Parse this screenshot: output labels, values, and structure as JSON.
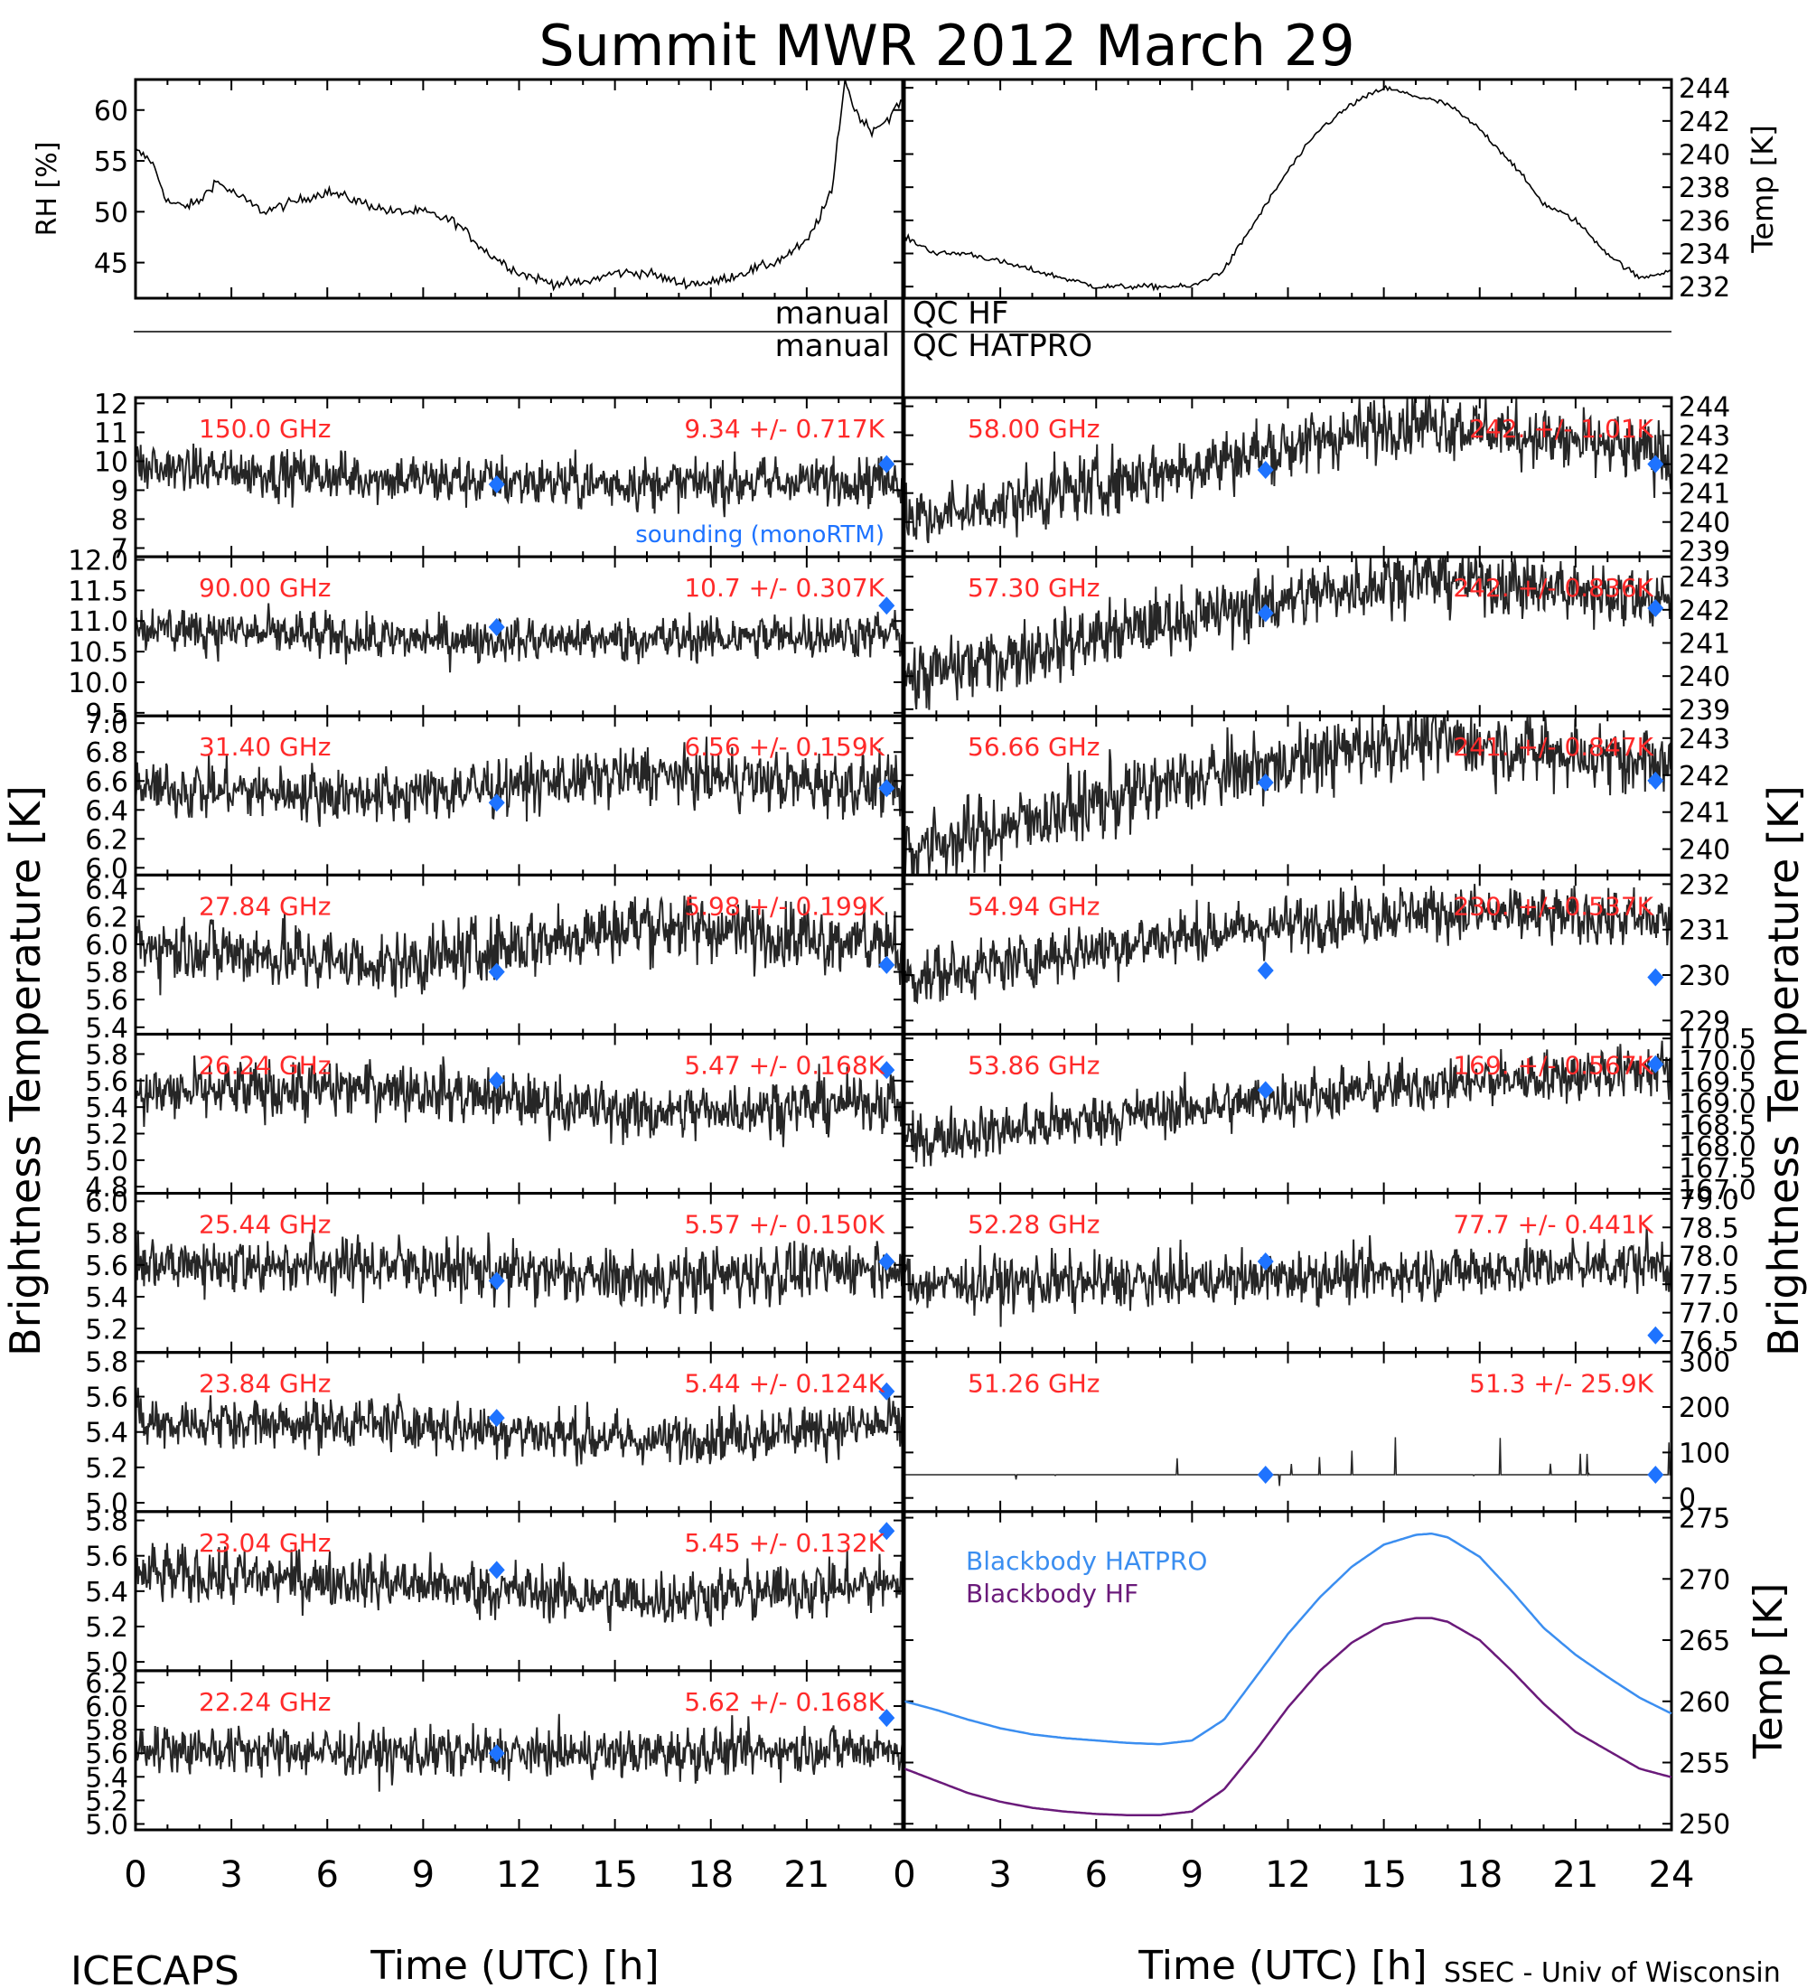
{
  "title": "Summit MWR 2012 March 29",
  "footer_left": "ICECAPS",
  "footer_right": "SSEC - Univ of Wisconsin",
  "x_axis_label": "Time (UTC) [h]",
  "x_ticks": [
    "0",
    "3",
    "6",
    "9",
    "12",
    "15",
    "18",
    "21",
    "24"
  ],
  "left_big_ylabel": "Brightness Temperature [K]",
  "right_big_ylabel": "Brightness Temperature [K]",
  "qc_labels": {
    "hf_manual": "manual",
    "hf": "QC HF",
    "hatpro_manual": "manual",
    "hatpro": "QC HATPRO"
  },
  "colors": {
    "label_red": "#ff2a2a",
    "marker_blue": "#1e73ff",
    "hatpro_line": "#3b8ef0",
    "hf_line": "#6a1a7a",
    "trace": "#000000"
  },
  "chart_data": [
    {
      "id": "rh",
      "type": "line",
      "ylabel": "RH [%]",
      "ylim": [
        41.5,
        63
      ],
      "yticks": [
        45,
        50,
        55,
        60
      ],
      "tick_labels": [
        "45",
        "50",
        "55",
        "60"
      ],
      "x": [
        0,
        0.5,
        1,
        1.5,
        2,
        2.5,
        3,
        4,
        5,
        6,
        7,
        8,
        9,
        10,
        11,
        12,
        13,
        14,
        15,
        16,
        17,
        18,
        19,
        20,
        21,
        21.8,
        22,
        22.2,
        22.5,
        23,
        23.5,
        24
      ],
      "y": [
        56,
        55,
        51,
        50.5,
        51,
        53,
        52,
        50,
        51,
        52,
        51,
        50,
        50,
        49,
        46,
        44,
        43,
        43,
        44,
        44,
        43,
        43,
        44,
        45,
        47,
        52,
        58,
        63,
        60,
        58,
        59,
        61
      ]
    },
    {
      "id": "temp",
      "type": "line",
      "ylabel": "Temp [K]",
      "ylim": [
        231.3,
        244.5
      ],
      "yticks": [
        232,
        234,
        236,
        238,
        240,
        242,
        244
      ],
      "tick_labels": [
        "232",
        "234",
        "236",
        "238",
        "240",
        "242",
        "244"
      ],
      "x": [
        0,
        1,
        2,
        3,
        4,
        5,
        6,
        7,
        8,
        9,
        10,
        11,
        12,
        13,
        14,
        15,
        16,
        17,
        18,
        19,
        20,
        21,
        22,
        23,
        24
      ],
      "y": [
        235,
        234,
        234,
        233.5,
        233,
        232.5,
        232,
        232,
        232,
        232,
        233,
        236,
        239,
        241.5,
        243,
        244,
        243.5,
        243,
        241.5,
        239.5,
        237,
        236,
        234,
        232.5,
        233
      ]
    },
    {
      "id": "ch150",
      "freq": "150.0 GHz",
      "stat": "9.34 +/- 0.717K",
      "ylim": [
        6.7,
        12.2
      ],
      "yticks": [
        7,
        8,
        9,
        10,
        11,
        12
      ],
      "tick_labels": [
        "7",
        "8",
        "9",
        "10",
        "11",
        "12"
      ],
      "level": [
        9.8,
        9.4,
        9.2,
        9.4
      ],
      "noise": 0.7,
      "markers": [
        [
          11.3,
          9.2
        ],
        [
          23.5,
          9.9
        ]
      ],
      "annotation": "sounding (monoRTM)"
    },
    {
      "id": "ch90",
      "freq": "90.00 GHz",
      "stat": "10.7 +/- 0.307K",
      "ylim": [
        9.45,
        12.05
      ],
      "yticks": [
        9.5,
        10.0,
        10.5,
        11.0,
        11.5,
        12.0
      ],
      "tick_labels": [
        "9.5",
        "10.0",
        "10.5",
        "11.0",
        "11.5",
        "12.0"
      ],
      "level": [
        10.9,
        10.7,
        10.7,
        10.8
      ],
      "noise": 0.3,
      "markers": [
        [
          11.3,
          10.9
        ],
        [
          23.5,
          11.25
        ]
      ]
    },
    {
      "id": "ch3140",
      "freq": "31.40 GHz",
      "stat": "6.56 +/- 0.159K",
      "ylim": [
        5.95,
        7.05
      ],
      "yticks": [
        6.0,
        6.2,
        6.4,
        6.6,
        6.8,
        7.0
      ],
      "tick_labels": [
        "6.0",
        "6.2",
        "6.4",
        "6.6",
        "6.8",
        "7.0"
      ],
      "level": [
        6.55,
        6.5,
        6.65,
        6.55
      ],
      "noise": 0.16,
      "markers": [
        [
          11.3,
          6.45
        ],
        [
          23.5,
          6.55
        ]
      ]
    },
    {
      "id": "ch2784",
      "freq": "27.84 GHz",
      "stat": "5.98 +/- 0.199K",
      "ylim": [
        5.35,
        6.5
      ],
      "yticks": [
        5.4,
        5.6,
        5.8,
        6.0,
        6.2,
        6.4
      ],
      "tick_labels": [
        "5.4",
        "5.6",
        "5.8",
        "6.0",
        "6.2",
        "6.4"
      ],
      "level": [
        6.0,
        5.85,
        6.15,
        6.0
      ],
      "noise": 0.2,
      "markers": [
        [
          11.3,
          5.8
        ],
        [
          23.5,
          5.85
        ]
      ]
    },
    {
      "id": "ch2624",
      "freq": "26.24 GHz",
      "stat": "5.47 +/- 0.168K",
      "ylim": [
        4.75,
        5.95
      ],
      "yticks": [
        4.8,
        5.0,
        5.2,
        5.4,
        5.6,
        5.8
      ],
      "tick_labels": [
        "4.8",
        "5.0",
        "5.2",
        "5.4",
        "5.6",
        "5.8"
      ],
      "level": [
        5.5,
        5.55,
        5.35,
        5.45
      ],
      "noise": 0.17,
      "markers": [
        [
          11.3,
          5.6
        ],
        [
          23.5,
          5.68
        ]
      ]
    },
    {
      "id": "ch2544",
      "freq": "25.44 GHz",
      "stat": "5.57 +/- 0.150K",
      "ylim": [
        5.05,
        6.05
      ],
      "yticks": [
        5.2,
        5.4,
        5.6,
        5.8,
        6.0
      ],
      "tick_labels": [
        "5.2",
        "5.4",
        "5.6",
        "5.8",
        "6.0"
      ],
      "level": [
        5.6,
        5.6,
        5.5,
        5.6
      ],
      "noise": 0.15,
      "markers": [
        [
          11.3,
          5.5
        ],
        [
          23.5,
          5.62
        ]
      ]
    },
    {
      "id": "ch2384",
      "freq": "23.84 GHz",
      "stat": "5.44 +/- 0.124K",
      "ylim": [
        4.95,
        5.85
      ],
      "yticks": [
        5.0,
        5.2,
        5.4,
        5.6,
        5.8
      ],
      "tick_labels": [
        "5.0",
        "5.2",
        "5.4",
        "5.6",
        "5.8"
      ],
      "level": [
        5.45,
        5.45,
        5.35,
        5.45
      ],
      "noise": 0.12,
      "markers": [
        [
          11.3,
          5.48
        ],
        [
          23.5,
          5.63
        ]
      ]
    },
    {
      "id": "ch2304",
      "freq": "23.04 GHz",
      "stat": "5.45 +/- 0.132K",
      "ylim": [
        4.95,
        5.85
      ],
      "yticks": [
        5.0,
        5.2,
        5.4,
        5.6,
        5.8
      ],
      "tick_labels": [
        "5.0",
        "5.2",
        "5.4",
        "5.6",
        "5.8"
      ],
      "level": [
        5.5,
        5.45,
        5.35,
        5.45
      ],
      "noise": 0.13,
      "markers": [
        [
          11.3,
          5.52
        ],
        [
          23.5,
          5.74
        ]
      ]
    },
    {
      "id": "ch2224",
      "freq": "22.24 GHz",
      "stat": "5.62 +/- 0.168K",
      "ylim": [
        4.95,
        6.3
      ],
      "yticks": [
        5.0,
        5.2,
        5.4,
        5.6,
        5.8,
        6.0,
        6.2
      ],
      "tick_labels": [
        "5.0",
        "5.2",
        "5.4",
        "5.6",
        "5.8",
        "6.0",
        "6.2"
      ],
      "level": [
        5.65,
        5.6,
        5.6,
        5.65
      ],
      "noise": 0.17,
      "markers": [
        [
          11.3,
          5.6
        ],
        [
          23.5,
          5.9
        ]
      ]
    },
    {
      "id": "ch5800",
      "freq": "58.00 GHz",
      "stat": "242. +/- 1.01K",
      "ylim": [
        238.8,
        244.3
      ],
      "yticks": [
        239,
        240,
        241,
        242,
        243,
        244
      ],
      "tick_labels": [
        "239",
        "240",
        "241",
        "242",
        "243",
        "244"
      ],
      "level": [
        240.0,
        241.7,
        243.5,
        242.3
      ],
      "noise": 0.9,
      "markers": [
        [
          11.3,
          241.8
        ],
        [
          23.5,
          242.0
        ]
      ]
    },
    {
      "id": "ch5730",
      "freq": "57.30 GHz",
      "stat": "242. +/- 0.836K",
      "ylim": [
        238.8,
        243.6
      ],
      "yticks": [
        239,
        240,
        241,
        242,
        243
      ],
      "tick_labels": [
        "239",
        "240",
        "241",
        "242",
        "243"
      ],
      "level": [
        239.9,
        241.6,
        243.0,
        242.3
      ],
      "noise": 0.8,
      "markers": [
        [
          11.3,
          241.9
        ],
        [
          23.5,
          242.05
        ]
      ]
    },
    {
      "id": "ch5666",
      "freq": "56.66 GHz",
      "stat": "241. +/- 0.847K",
      "ylim": [
        239.3,
        243.6
      ],
      "yticks": [
        240,
        241,
        242,
        243
      ],
      "tick_labels": [
        "240",
        "241",
        "242",
        "243"
      ],
      "level": [
        239.9,
        241.7,
        243.0,
        242.3
      ],
      "noise": 0.8,
      "markers": [
        [
          11.3,
          241.8
        ],
        [
          23.5,
          241.85
        ]
      ]
    },
    {
      "id": "ch5494",
      "freq": "54.94 GHz",
      "stat": "230. +/- 0.537K",
      "ylim": [
        228.7,
        232.2
      ],
      "yticks": [
        229,
        230,
        231,
        232
      ],
      "tick_labels": [
        "229",
        "230",
        "231",
        "232"
      ],
      "level": [
        229.9,
        230.8,
        231.4,
        231.2
      ],
      "noise": 0.5,
      "markers": [
        [
          11.3,
          230.1
        ],
        [
          23.5,
          229.95
        ]
      ]
    },
    {
      "id": "ch5386",
      "freq": "53.86 GHz",
      "stat": "169. +/- 0.567K",
      "ylim": [
        166.9,
        170.6
      ],
      "yticks": [
        167.0,
        167.5,
        168.0,
        168.5,
        169.0,
        169.5,
        170.0,
        170.5
      ],
      "tick_labels": [
        "167.0",
        "167.5",
        "168.0",
        "168.5",
        "169.0",
        "169.5",
        "170.0",
        "170.5"
      ],
      "level": [
        168.1,
        168.8,
        169.4,
        169.8
      ],
      "noise": 0.5,
      "markers": [
        [
          11.3,
          169.3
        ],
        [
          23.5,
          169.9
        ]
      ]
    },
    {
      "id": "ch5228",
      "freq": "52.28 GHz",
      "stat": "77.7 +/- 0.441K",
      "ylim": [
        76.3,
        79.1
      ],
      "yticks": [
        76.5,
        77.0,
        77.5,
        78.0,
        78.5,
        79.0
      ],
      "tick_labels": [
        "76.5",
        "77.0",
        "77.5",
        "78.0",
        "78.5",
        "79.0"
      ],
      "level": [
        77.5,
        77.55,
        77.7,
        77.9
      ],
      "noise": 0.4,
      "markers": [
        [
          11.3,
          77.9
        ],
        [
          23.5,
          76.6
        ]
      ]
    },
    {
      "id": "ch5126",
      "freq": "51.26 GHz",
      "stat": "51.3 +/- 25.9K",
      "ylim": [
        -30,
        320
      ],
      "yticks": [
        0,
        100,
        200,
        300
      ],
      "tick_labels": [
        "0",
        "100",
        "200",
        "300"
      ],
      "level": [
        51,
        51,
        51,
        51
      ],
      "noise": 0,
      "spikes": true,
      "markers": [
        [
          11.3,
          51
        ],
        [
          23.5,
          51
        ]
      ]
    },
    {
      "id": "bb",
      "type": "line",
      "ylabel": "Temp [K]",
      "ylim": [
        249.5,
        275.5
      ],
      "yticks": [
        250,
        255,
        260,
        265,
        270,
        275
      ],
      "tick_labels": [
        "250",
        "255",
        "260",
        "265",
        "270",
        "275"
      ],
      "x": [
        0,
        1,
        2,
        3,
        4,
        5,
        6,
        7,
        8,
        9,
        10,
        11,
        12,
        13,
        14,
        15,
        16,
        16.5,
        17,
        18,
        19,
        20,
        21,
        22,
        23,
        24
      ],
      "series": [
        {
          "name": "Blackbody HATPRO",
          "values": [
            260,
            259.3,
            258.5,
            257.8,
            257.3,
            257,
            256.8,
            256.6,
            256.5,
            256.8,
            258.5,
            262,
            265.5,
            268.5,
            271,
            272.8,
            273.6,
            273.7,
            273.4,
            271.8,
            269,
            266,
            263.8,
            262,
            260.3,
            259
          ]
        },
        {
          "name": "Blackbody HF",
          "values": [
            254.5,
            253.5,
            252.5,
            251.8,
            251.3,
            251,
            250.8,
            250.7,
            250.7,
            251,
            252.8,
            256,
            259.5,
            262.5,
            264.8,
            266.3,
            266.8,
            266.8,
            266.5,
            265,
            262.5,
            259.8,
            257.5,
            256,
            254.5,
            253.8
          ]
        }
      ]
    }
  ]
}
